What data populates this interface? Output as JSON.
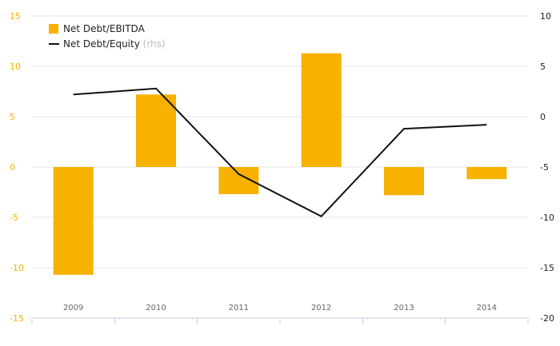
{
  "chart_data": {
    "type": "bar",
    "categories": [
      "2009",
      "2010",
      "2011",
      "2012",
      "2013",
      "2014"
    ],
    "series": [
      {
        "name": "Net Debt/EBITDA",
        "type": "bar",
        "axis": "left",
        "color": "#F7B200",
        "values": [
          -10.7,
          7.2,
          -2.7,
          11.3,
          -2.8,
          -1.2
        ]
      },
      {
        "name": "Net Debt/Equity",
        "name_suffix": "(rhs)",
        "type": "line",
        "axis": "right",
        "color": "#111111",
        "values": [
          2.2,
          2.8,
          -5.7,
          -9.9,
          -1.2,
          -0.8
        ]
      }
    ],
    "y_left": {
      "min": -15,
      "max": 15,
      "ticks": [
        "15",
        "10",
        "5",
        "0",
        "-5",
        "-10",
        "-15"
      ],
      "color": "#F7B200"
    },
    "y_right": {
      "min": -20,
      "max": 10,
      "ticks": [
        "10",
        "5",
        "0",
        "-5",
        "-10",
        "-15",
        "-20"
      ],
      "color": "#222222"
    },
    "grid": true,
    "legend": "top-left",
    "title": "",
    "xlabel": "",
    "ylabel": ""
  }
}
